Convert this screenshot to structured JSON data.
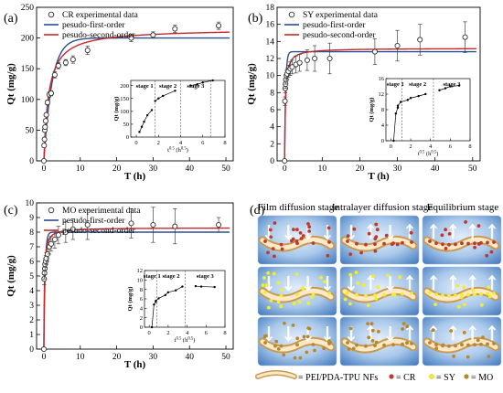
{
  "colors": {
    "first_order": "#2a4f8f",
    "second_order": "#c8282a",
    "experimental_marker": "#333333",
    "CR_dot": "#c0392b",
    "SY_dot": "#f2ef2a",
    "MO_dot": "#b9872a",
    "panel_bg_center": "#d7e6f6",
    "panel_bg_edge": "#4e86c8",
    "fiber": "#e9c489"
  },
  "chart_data": [
    {
      "panel_label": "(a)",
      "type": "scatter",
      "xlabel": "T (h)",
      "ylabel": "Qt (mg/g)",
      "xlim": [
        -2,
        52
      ],
      "ylim": [
        0,
        250
      ],
      "xticks": [
        "0",
        "10",
        "20",
        "30",
        "40",
        "50"
      ],
      "yticks": [
        "0",
        "50",
        "100",
        "150",
        "200",
        "250"
      ],
      "legend": [
        "CR experimental data",
        "pesudo-first-order",
        "pesudo-second-order"
      ],
      "legend_position": "top-left",
      "experimental": {
        "x": [
          0,
          0.08,
          0.17,
          0.25,
          0.33,
          0.5,
          0.67,
          1,
          1.5,
          2,
          3,
          4,
          6,
          8,
          12,
          24,
          30,
          36,
          48
        ],
        "y": [
          0,
          25,
          35,
          50,
          55,
          65,
          75,
          95,
          108,
          110,
          140,
          155,
          160,
          165,
          180,
          200,
          205,
          215,
          220
        ],
        "err": [
          0,
          3,
          3,
          3,
          3,
          3,
          3,
          4,
          4,
          4,
          5,
          5,
          5,
          6,
          7,
          6,
          5,
          6,
          6
        ]
      },
      "first_order": {
        "qe": 200,
        "k": 0.45
      },
      "second_order": {
        "qe": 215,
        "k": 0.0035
      },
      "inset": {
        "xlabel": "t^0.5 (h^0.5)",
        "ylabel": "Qt (mg/g)",
        "xlim": [
          -0.5,
          8
        ],
        "ylim": [
          0,
          220
        ],
        "xticks": [
          "0",
          "2",
          "4",
          "6",
          "8"
        ],
        "yticks": [
          "0",
          "50",
          "100",
          "150",
          "200"
        ],
        "stage_labels": [
          "stage 1",
          "stage 2",
          "stage 3"
        ],
        "stage_dividers": [
          1.7,
          4.0,
          6.7
        ],
        "segments": [
          {
            "x": [
              0.28,
              0.5,
              0.7,
              1.0,
              1.4
            ],
            "y": [
              20,
              40,
              60,
              85,
              105
            ]
          },
          {
            "x": [
              1.7,
              2.0,
              2.4,
              3.5
            ],
            "y": [
              140,
              150,
              160,
              180
            ]
          },
          {
            "x": [
              4.9,
              5.5,
              6.0,
              6.9
            ],
            "y": [
              200,
              205,
              212,
              220
            ]
          }
        ]
      }
    },
    {
      "panel_label": "(b)",
      "type": "scatter",
      "xlabel": "T (h)",
      "ylabel": "Qt (mg/g)",
      "xlim": [
        -2,
        52
      ],
      "ylim": [
        0,
        18
      ],
      "xticks": [
        "0",
        "10",
        "20",
        "30",
        "40",
        "50"
      ],
      "yticks": [
        "0",
        "2",
        "4",
        "6",
        "8",
        "10",
        "12",
        "14",
        "16",
        "18"
      ],
      "legend": [
        "SY experimental data",
        "pesudo-first-order",
        "pesudo-second-order"
      ],
      "legend_position": "top-left",
      "experimental": {
        "x": [
          0,
          0.08,
          0.17,
          0.25,
          0.33,
          0.5,
          0.67,
          1,
          1.5,
          2,
          3,
          4,
          6,
          8,
          12,
          24,
          30,
          36,
          48
        ],
        "y": [
          0,
          7,
          8.5,
          9,
          9.5,
          10,
          10.2,
          10.5,
          10.8,
          11,
          11.3,
          11.5,
          11.8,
          12,
          12,
          12.8,
          13.5,
          14.2,
          14.5
        ],
        "err": [
          0,
          0.5,
          0.5,
          0.5,
          0.5,
          0.6,
          0.6,
          0.7,
          0.8,
          0.8,
          1,
          1,
          1.2,
          1.5,
          1.8,
          1.5,
          1.8,
          1.8,
          1.8
        ]
      },
      "first_order": {
        "qe": 12.8,
        "k": 3.5
      },
      "second_order": {
        "qe": 13.2,
        "k": 0.35
      },
      "inset": {
        "xlabel": "t^0.5 (h^0.5)",
        "ylabel": "Qt (mg/g)",
        "xlim": [
          -0.5,
          8
        ],
        "ylim": [
          0,
          16
        ],
        "xticks": [
          "0",
          "2",
          "4",
          "6",
          "8"
        ],
        "yticks": [
          "0",
          "4",
          "8",
          "12",
          "16"
        ],
        "stage_labels": [
          "stage 1",
          "stage 2",
          "stage 3"
        ],
        "stage_dividers": [
          1.1,
          4.3
        ],
        "segments": [
          {
            "x": [
              0.28,
              0.5,
              0.7
            ],
            "y": [
              0,
              7,
              8.5
            ]
          },
          {
            "x": [
              0.7,
              1.0,
              1.7,
              2.0,
              2.8,
              3.5
            ],
            "y": [
              9,
              10,
              10.5,
              11,
              11.5,
              12
            ]
          },
          {
            "x": [
              4.9,
              5.5,
              6.0,
              6.9
            ],
            "y": [
              13,
              13.5,
              14,
              14.2
            ]
          }
        ]
      }
    },
    {
      "panel_label": "(c)",
      "type": "scatter",
      "xlabel": "T (h)",
      "ylabel": "Qt (mg/g)",
      "xlim": [
        -2,
        52
      ],
      "ylim": [
        0,
        10
      ],
      "xticks": [
        "0",
        "10",
        "20",
        "30",
        "40",
        "50"
      ],
      "yticks": [
        "0",
        "1",
        "2",
        "3",
        "4",
        "5",
        "6",
        "7",
        "8",
        "9",
        "10"
      ],
      "legend": [
        "MO experimental data",
        "pesudo-first-order",
        "pesudo-second-order"
      ],
      "legend_position": "top-left",
      "experimental": {
        "x": [
          0,
          0.08,
          0.17,
          0.25,
          0.33,
          0.5,
          0.67,
          1,
          1.5,
          2,
          3,
          4,
          6,
          8,
          12,
          24,
          30,
          36,
          48
        ],
        "y": [
          0,
          4.8,
          5.2,
          5.5,
          5.8,
          6,
          6.2,
          6.5,
          7,
          7.2,
          7.5,
          7.8,
          8,
          8.2,
          8.5,
          8.6,
          8.5,
          8.4,
          8.5
        ],
        "err": [
          0,
          0.4,
          0.4,
          0.4,
          0.4,
          0.4,
          0.4,
          0.5,
          0.5,
          0.5,
          0.6,
          0.6,
          0.7,
          0.7,
          1.0,
          1.0,
          1.2,
          1.2,
          0.5
        ]
      },
      "first_order": {
        "qe": 8.0,
        "k": 3.0
      },
      "second_order": {
        "qe": 8.3,
        "k": 0.8
      },
      "inset": {
        "xlabel": "t^0.5 (h^0.5)",
        "ylabel": "Qt (mg/g)",
        "xlim": [
          -0.5,
          8
        ],
        "ylim": [
          0,
          12
        ],
        "xticks": [
          "0",
          "2",
          "4",
          "6",
          "8"
        ],
        "yticks": [
          "0",
          "2",
          "4",
          "6",
          "8",
          "10",
          "12"
        ],
        "stage_labels": [
          "stage 1",
          "stage 2",
          "stage 3"
        ],
        "stage_dividers": [
          0.8,
          3.8
        ],
        "segments": [
          {
            "x": [
              0.28,
              0.5,
              0.7
            ],
            "y": [
              0,
              4.8,
              5.4
            ]
          },
          {
            "x": [
              0.7,
              1.0,
              1.7,
              2.0,
              2.8,
              3.5
            ],
            "y": [
              5.6,
              6.1,
              6.8,
              7.4,
              7.8,
              8.6
            ]
          },
          {
            "x": [
              4.9,
              5.5,
              6.9
            ],
            "y": [
              8.7,
              8.6,
              8.5
            ]
          }
        ]
      }
    }
  ],
  "schematic": {
    "panel_label": "(d)",
    "column_titles": [
      "Film diffusion stage",
      "Intralayer diffusion stage",
      "Equilibrium stage"
    ],
    "row_dyes": [
      "CR",
      "SY",
      "MO"
    ],
    "legend": {
      "fiber_label": "= PEI/PDA-TPU  NFs",
      "CR_label": "= CR",
      "SY_label": "= SY",
      "MO_label": "= MO"
    }
  }
}
